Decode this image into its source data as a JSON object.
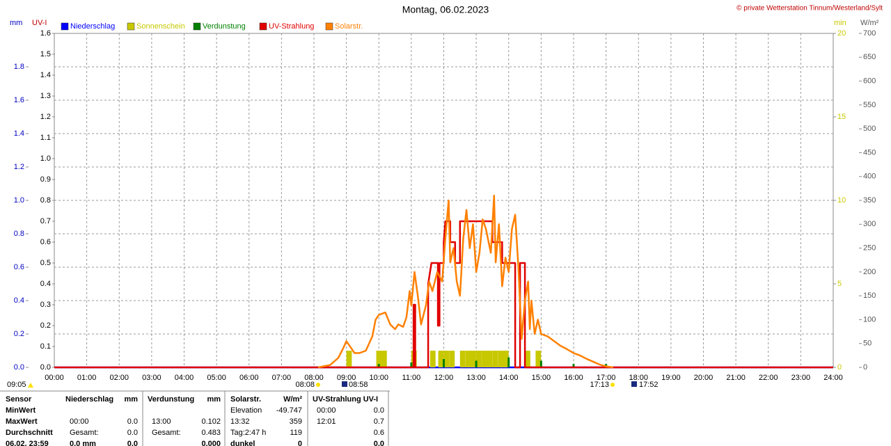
{
  "chart_data": {
    "type": "line",
    "title": "Montag, 06.02.2023",
    "copyright": "© private Wetterstation Tinnum/Westerland/Sylt",
    "xlim": [
      0,
      24
    ],
    "xticks": [
      {
        "value": 0,
        "label": "00:00"
      },
      {
        "value": 1,
        "label": "01:00"
      },
      {
        "value": 2,
        "label": "02:00"
      },
      {
        "value": 3,
        "label": "03:00"
      },
      {
        "value": 4,
        "label": "04:00"
      },
      {
        "value": 5,
        "label": "05:00"
      },
      {
        "value": 6,
        "label": "06:00"
      },
      {
        "value": 7,
        "label": "07:00"
      },
      {
        "value": 8,
        "label": "08:00"
      },
      {
        "value": 9,
        "label": "09:00"
      },
      {
        "value": 10,
        "label": "10:00"
      },
      {
        "value": 11,
        "label": "11:00"
      },
      {
        "value": 12,
        "label": "12:00"
      },
      {
        "value": 13,
        "label": "13:00"
      },
      {
        "value": 14,
        "label": "14:00"
      },
      {
        "value": 15,
        "label": "15:00"
      },
      {
        "value": 16,
        "label": "16:00"
      },
      {
        "value": 17,
        "label": "17:00"
      },
      {
        "value": 18,
        "label": "18:00"
      },
      {
        "value": 19,
        "label": "19:00"
      },
      {
        "value": 20,
        "label": "20:00"
      },
      {
        "value": 21,
        "label": "21:00"
      },
      {
        "value": 22,
        "label": "22:00"
      },
      {
        "value": 23,
        "label": "23:00"
      },
      {
        "value": 24,
        "label": "24:00"
      }
    ],
    "grid": true,
    "axes": {
      "mm": {
        "label": "mm",
        "color": "#0000c0",
        "lim": [
          0,
          2
        ],
        "ticks": [
          {
            "value": 0,
            "label": "0.0"
          },
          {
            "value": 0.2,
            "label": "0.2"
          },
          {
            "value": 0.4,
            "label": "0.4"
          },
          {
            "value": 0.6,
            "label": "0.6"
          },
          {
            "value": 0.8,
            "label": "0.8"
          },
          {
            "value": 1,
            "label": "1.0"
          },
          {
            "value": 1.2,
            "label": "1.2"
          },
          {
            "value": 1.4,
            "label": "1.4"
          },
          {
            "value": 1.6,
            "label": "1.6"
          },
          {
            "value": 1.8,
            "label": "1.8"
          }
        ]
      },
      "uv": {
        "label": "UV-I",
        "color": "#c00000",
        "lim": [
          0,
          1.6
        ],
        "ticks": [
          {
            "value": 0,
            "label": "0.0"
          },
          {
            "value": 0.1,
            "label": "0.1"
          },
          {
            "value": 0.2,
            "label": "0.2"
          },
          {
            "value": 0.3,
            "label": "0.3"
          },
          {
            "value": 0.4,
            "label": "0.4"
          },
          {
            "value": 0.5,
            "label": "0.5"
          },
          {
            "value": 0.6,
            "label": "0.6"
          },
          {
            "value": 0.7,
            "label": "0.7"
          },
          {
            "value": 0.8,
            "label": "0.8"
          },
          {
            "value": 0.9,
            "label": "0.9"
          },
          {
            "value": 1,
            "label": "1.0"
          },
          {
            "value": 1.1,
            "label": "1.1"
          },
          {
            "value": 1.2,
            "label": "1.2"
          },
          {
            "value": 1.3,
            "label": "1.3"
          },
          {
            "value": 1.4,
            "label": "1.4"
          },
          {
            "value": 1.5,
            "label": "1.5"
          },
          {
            "value": 1.6,
            "label": "1.6"
          }
        ]
      },
      "min": {
        "label": "min",
        "color": "#c8c800",
        "lim": [
          0,
          20
        ],
        "ticks": [
          0,
          5,
          10,
          15,
          20
        ]
      },
      "w": {
        "label": "W/m²",
        "color": "#555555",
        "lim": [
          0,
          700
        ],
        "ticks": [
          0,
          50,
          100,
          150,
          200,
          250,
          300,
          350,
          400,
          450,
          500,
          550,
          600,
          650,
          700
        ]
      }
    },
    "series": [
      {
        "name": "Niederschlag",
        "color": "#0000ff",
        "axis": "mm",
        "kind": "line",
        "x": [
          0,
          24
        ],
        "values": [
          0,
          0
        ]
      },
      {
        "name": "Sonnenschein",
        "color": "#c8c800",
        "axis": "min",
        "kind": "bar",
        "x": [
          9.0,
          9.92,
          10.08,
          11.0,
          11.58,
          11.83,
          12.0,
          12.17,
          12.5,
          12.67,
          12.83,
          13.0,
          13.17,
          13.33,
          13.5,
          13.67,
          13.83,
          14.5,
          14.83
        ],
        "values": [
          1,
          1,
          1,
          1,
          1,
          1,
          1,
          1,
          1,
          1,
          1,
          1,
          1,
          1,
          1,
          1,
          1,
          1,
          1
        ]
      },
      {
        "name": "Verdunstung",
        "color": "#008000",
        "axis": "mm",
        "kind": "spike",
        "x": [
          10.0,
          11.0,
          12.0,
          13.0,
          14.0,
          15.0,
          16.0,
          17.0
        ],
        "values": [
          0.02,
          0.03,
          0.05,
          0.04,
          0.06,
          0.04,
          0.02,
          0.02
        ]
      },
      {
        "name": "UV-Strahlung",
        "color": "#e00000",
        "axis": "uv",
        "kind": "line",
        "x": [
          0,
          11.07,
          11.07,
          11.12,
          11.12,
          11.52,
          11.52,
          11.62,
          11.82,
          11.82,
          11.87,
          11.87,
          12.0,
          12.0,
          12.05,
          12.2,
          12.2,
          12.35,
          12.35,
          12.5,
          12.5,
          13.5,
          13.5,
          13.8,
          13.8,
          14.2,
          14.2,
          14.35,
          14.35,
          14.5,
          14.5,
          24
        ],
        "values": [
          0,
          0,
          0.3,
          0.3,
          0,
          0,
          0.4,
          0.5,
          0.5,
          0.2,
          0.2,
          0.5,
          0.5,
          0.6,
          0.7,
          0.7,
          0.6,
          0.6,
          0.5,
          0.5,
          0.7,
          0.7,
          0.6,
          0.6,
          0.5,
          0.5,
          0,
          0,
          0.5,
          0.5,
          0,
          0
        ]
      },
      {
        "name": "Solarstr.",
        "color": "#ff8000",
        "axis": "w",
        "kind": "line",
        "x": [
          8.13,
          8.5,
          8.75,
          8.9,
          9.0,
          9.1,
          9.25,
          9.4,
          9.6,
          9.8,
          9.9,
          10.0,
          10.2,
          10.35,
          10.5,
          10.6,
          10.75,
          10.85,
          10.95,
          11.0,
          11.1,
          11.2,
          11.3,
          11.45,
          11.55,
          11.65,
          11.8,
          11.95,
          12.05,
          12.15,
          12.2,
          12.3,
          12.4,
          12.5,
          12.6,
          12.7,
          12.8,
          12.9,
          13.0,
          13.1,
          13.2,
          13.3,
          13.45,
          13.55,
          13.6,
          13.7,
          13.8,
          13.9,
          14.0,
          14.1,
          14.2,
          14.3,
          14.4,
          14.5,
          14.6,
          14.65,
          14.7,
          14.8,
          14.9,
          15.0,
          15.2,
          15.4,
          15.6,
          15.8,
          16.0,
          16.2,
          16.4,
          16.6,
          16.8,
          17.0,
          17.22
        ],
        "values": [
          0,
          5,
          20,
          40,
          55,
          45,
          30,
          30,
          35,
          65,
          100,
          110,
          115,
          90,
          80,
          90,
          85,
          105,
          160,
          130,
          200,
          150,
          90,
          130,
          180,
          160,
          200,
          180,
          270,
          350,
          220,
          250,
          180,
          150,
          270,
          330,
          250,
          300,
          200,
          240,
          310,
          290,
          240,
          360,
          220,
          300,
          170,
          230,
          200,
          290,
          320,
          210,
          60,
          140,
          180,
          80,
          140,
          70,
          100,
          70,
          65,
          55,
          45,
          38,
          30,
          25,
          18,
          12,
          6,
          2,
          0
        ]
      }
    ],
    "sun_times": [
      "09:05",
      "08:08",
      "08:58",
      "17:13",
      "17:52"
    ]
  },
  "table": {
    "header": [
      "Sensor",
      "Niederschlag",
      "mm",
      "Verdunstung",
      "mm",
      "Solarstr.",
      "W/m²",
      "UV-Strahlung UV-I"
    ],
    "rows": [
      [
        "MinWert",
        null,
        null,
        null,
        null,
        "Elevation",
        "-49.747",
        "00:00",
        "0.0"
      ],
      [
        "MaxWert",
        "00:00",
        "0.0",
        "13:00",
        "0.102",
        "13:32",
        "359",
        "12:01",
        "0.7"
      ],
      [
        "Durchschnitt",
        "Gesamt:",
        "0.0",
        "Gesamt:",
        "0.483",
        "Tag:2:47 h",
        "119",
        null,
        "0.6"
      ],
      [
        "06.02. 23:59",
        "0.0 mm",
        "0.0",
        null,
        "0.000",
        "dunkel",
        "0",
        null,
        "0.0"
      ]
    ]
  }
}
